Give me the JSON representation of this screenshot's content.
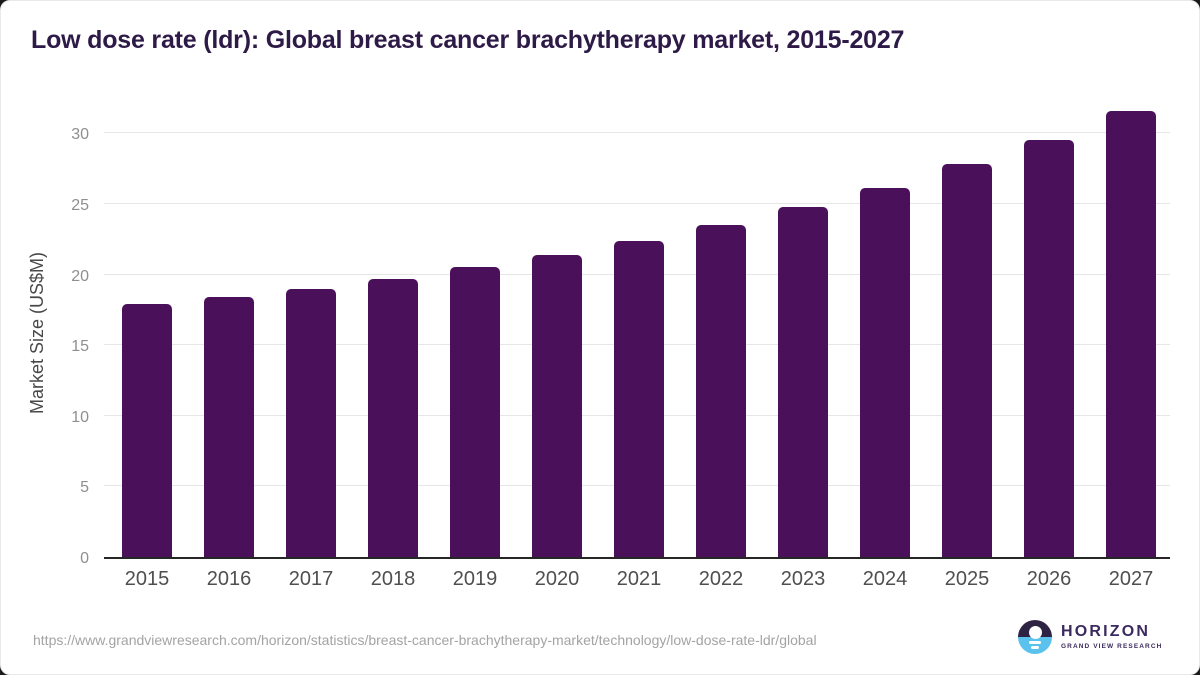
{
  "title": "Low dose rate (ldr): Global breast cancer brachytherapy market, 2015-2027",
  "chart_data": {
    "type": "bar",
    "title": "Low dose rate (ldr): Global breast cancer brachytherapy market, 2015-2027",
    "categories": [
      "2015",
      "2016",
      "2017",
      "2018",
      "2019",
      "2020",
      "2021",
      "2022",
      "2023",
      "2024",
      "2025",
      "2026",
      "2027"
    ],
    "values": [
      17.9,
      18.4,
      19.0,
      19.7,
      20.5,
      21.4,
      22.4,
      23.5,
      24.8,
      26.1,
      27.8,
      29.5,
      31.6
    ],
    "xlabel": "",
    "ylabel": "Market Size (US$M)",
    "ylim": [
      0,
      32
    ],
    "yticks": [
      0,
      5,
      10,
      15,
      20,
      25,
      30
    ],
    "grid": true,
    "legend_position": "none",
    "bar_color": "#4a105a"
  },
  "footer": {
    "source_url": "https://www.grandviewresearch.com/horizon/statistics/breast-cancer-brachytherapy-market/technology/low-dose-rate-ldr/global",
    "logo": {
      "name": "HORIZON",
      "subtitle": "GRAND VIEW RESEARCH"
    }
  },
  "colors": {
    "bar": "#4a105a",
    "title_text": "#2e1a47",
    "axis_line": "#262626",
    "gridline": "#e7e7e7",
    "y_tick_text": "#8f8f8f",
    "x_tick_text": "#4f4f4f",
    "y_axis_title_text": "#484848",
    "source_url_text": "#a3a3a3",
    "logo_dark_purple": "#2f2344",
    "logo_light_blue": "#5bc2ee",
    "logo_text": "#3b2a5e"
  }
}
